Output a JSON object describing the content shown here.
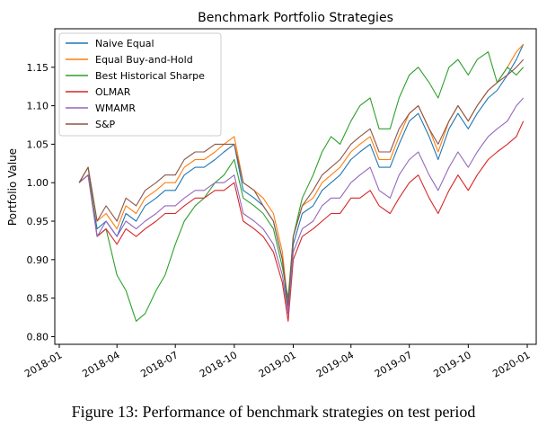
{
  "caption": "Figure 13: Performance of benchmark strategies on test period",
  "chart_data": {
    "type": "line",
    "title": "Benchmark Portfolio Strategies",
    "xlabel": "",
    "ylabel": "Portfolio Value",
    "xlim": [
      "2017-12-25",
      "2020-01-15"
    ],
    "ylim": [
      0.79,
      1.2
    ],
    "x_ticks": [
      "2018-01",
      "2018-04",
      "2018-07",
      "2018-10",
      "2019-01",
      "2019-04",
      "2019-07",
      "2019-10",
      "2020-01"
    ],
    "y_ticks": [
      0.8,
      0.85,
      0.9,
      0.95,
      1.0,
      1.05,
      1.1,
      1.15
    ],
    "grid": false,
    "legend_position": "top-left",
    "x": [
      "2018-02-01",
      "2018-02-15",
      "2018-03-01",
      "2018-03-15",
      "2018-04-01",
      "2018-04-15",
      "2018-05-01",
      "2018-05-15",
      "2018-06-01",
      "2018-06-15",
      "2018-07-01",
      "2018-07-15",
      "2018-08-01",
      "2018-08-15",
      "2018-09-01",
      "2018-09-15",
      "2018-10-01",
      "2018-10-15",
      "2018-11-01",
      "2018-11-15",
      "2018-12-01",
      "2018-12-15",
      "2018-12-24",
      "2019-01-01",
      "2019-01-15",
      "2019-02-01",
      "2019-02-15",
      "2019-03-01",
      "2019-03-15",
      "2019-04-01",
      "2019-04-15",
      "2019-05-01",
      "2019-05-15",
      "2019-06-01",
      "2019-06-15",
      "2019-07-01",
      "2019-07-15",
      "2019-08-01",
      "2019-08-15",
      "2019-09-01",
      "2019-09-15",
      "2019-10-01",
      "2019-10-15",
      "2019-11-01",
      "2019-11-15",
      "2019-12-01",
      "2019-12-15",
      "2019-12-26"
    ],
    "series": [
      {
        "name": "Naive Equal",
        "color": "#1f77b4",
        "values": [
          1.0,
          1.01,
          0.94,
          0.95,
          0.93,
          0.96,
          0.95,
          0.97,
          0.98,
          0.99,
          0.99,
          1.01,
          1.02,
          1.02,
          1.03,
          1.04,
          1.05,
          0.99,
          0.98,
          0.97,
          0.95,
          0.9,
          0.83,
          0.92,
          0.96,
          0.97,
          0.99,
          1.0,
          1.01,
          1.03,
          1.04,
          1.05,
          1.02,
          1.02,
          1.05,
          1.08,
          1.09,
          1.06,
          1.03,
          1.07,
          1.09,
          1.07,
          1.09,
          1.11,
          1.12,
          1.14,
          1.16,
          1.18
        ]
      },
      {
        "name": "Equal Buy-and-Hold",
        "color": "#ff7f0e",
        "values": [
          1.0,
          1.02,
          0.95,
          0.96,
          0.94,
          0.97,
          0.96,
          0.98,
          0.99,
          1.0,
          1.0,
          1.02,
          1.03,
          1.03,
          1.04,
          1.05,
          1.06,
          1.0,
          0.99,
          0.98,
          0.96,
          0.91,
          0.84,
          0.93,
          0.97,
          0.98,
          1.0,
          1.01,
          1.02,
          1.04,
          1.05,
          1.06,
          1.03,
          1.03,
          1.06,
          1.09,
          1.1,
          1.07,
          1.04,
          1.08,
          1.1,
          1.08,
          1.1,
          1.12,
          1.13,
          1.15,
          1.17,
          1.18
        ]
      },
      {
        "name": "Best Historical Sharpe",
        "color": "#2ca02c",
        "values": [
          1.0,
          1.02,
          0.93,
          0.94,
          0.88,
          0.86,
          0.82,
          0.83,
          0.86,
          0.88,
          0.92,
          0.95,
          0.97,
          0.98,
          1.0,
          1.01,
          1.03,
          0.98,
          0.97,
          0.96,
          0.94,
          0.89,
          0.85,
          0.93,
          0.98,
          1.01,
          1.04,
          1.06,
          1.05,
          1.08,
          1.1,
          1.11,
          1.07,
          1.07,
          1.11,
          1.14,
          1.15,
          1.13,
          1.11,
          1.15,
          1.16,
          1.14,
          1.16,
          1.17,
          1.13,
          1.15,
          1.14,
          1.15
        ]
      },
      {
        "name": "OLMAR",
        "color": "#d62728",
        "values": [
          1.0,
          1.01,
          0.93,
          0.94,
          0.92,
          0.94,
          0.93,
          0.94,
          0.95,
          0.96,
          0.96,
          0.97,
          0.98,
          0.98,
          0.99,
          0.99,
          1.0,
          0.95,
          0.94,
          0.93,
          0.91,
          0.87,
          0.82,
          0.9,
          0.93,
          0.94,
          0.95,
          0.96,
          0.96,
          0.98,
          0.98,
          0.99,
          0.97,
          0.96,
          0.98,
          1.0,
          1.01,
          0.98,
          0.96,
          0.99,
          1.01,
          0.99,
          1.01,
          1.03,
          1.04,
          1.05,
          1.06,
          1.08
        ]
      },
      {
        "name": "WMAMR",
        "color": "#9467bd",
        "values": [
          1.0,
          1.01,
          0.93,
          0.95,
          0.93,
          0.95,
          0.94,
          0.95,
          0.96,
          0.97,
          0.97,
          0.98,
          0.99,
          0.99,
          1.0,
          1.0,
          1.01,
          0.96,
          0.95,
          0.94,
          0.92,
          0.88,
          0.83,
          0.91,
          0.94,
          0.95,
          0.97,
          0.98,
          0.98,
          1.0,
          1.01,
          1.02,
          0.99,
          0.98,
          1.01,
          1.03,
          1.04,
          1.01,
          0.99,
          1.02,
          1.04,
          1.02,
          1.04,
          1.06,
          1.07,
          1.08,
          1.1,
          1.11
        ]
      },
      {
        "name": "S&P",
        "color": "#8c564b",
        "values": [
          1.0,
          1.02,
          0.95,
          0.97,
          0.95,
          0.98,
          0.97,
          0.99,
          1.0,
          1.01,
          1.01,
          1.03,
          1.04,
          1.04,
          1.05,
          1.05,
          1.05,
          1.0,
          0.99,
          0.97,
          0.95,
          0.9,
          0.84,
          0.93,
          0.97,
          0.99,
          1.01,
          1.02,
          1.03,
          1.05,
          1.06,
          1.07,
          1.04,
          1.04,
          1.07,
          1.09,
          1.1,
          1.07,
          1.05,
          1.08,
          1.1,
          1.08,
          1.1,
          1.12,
          1.13,
          1.14,
          1.15,
          1.16
        ]
      }
    ]
  }
}
